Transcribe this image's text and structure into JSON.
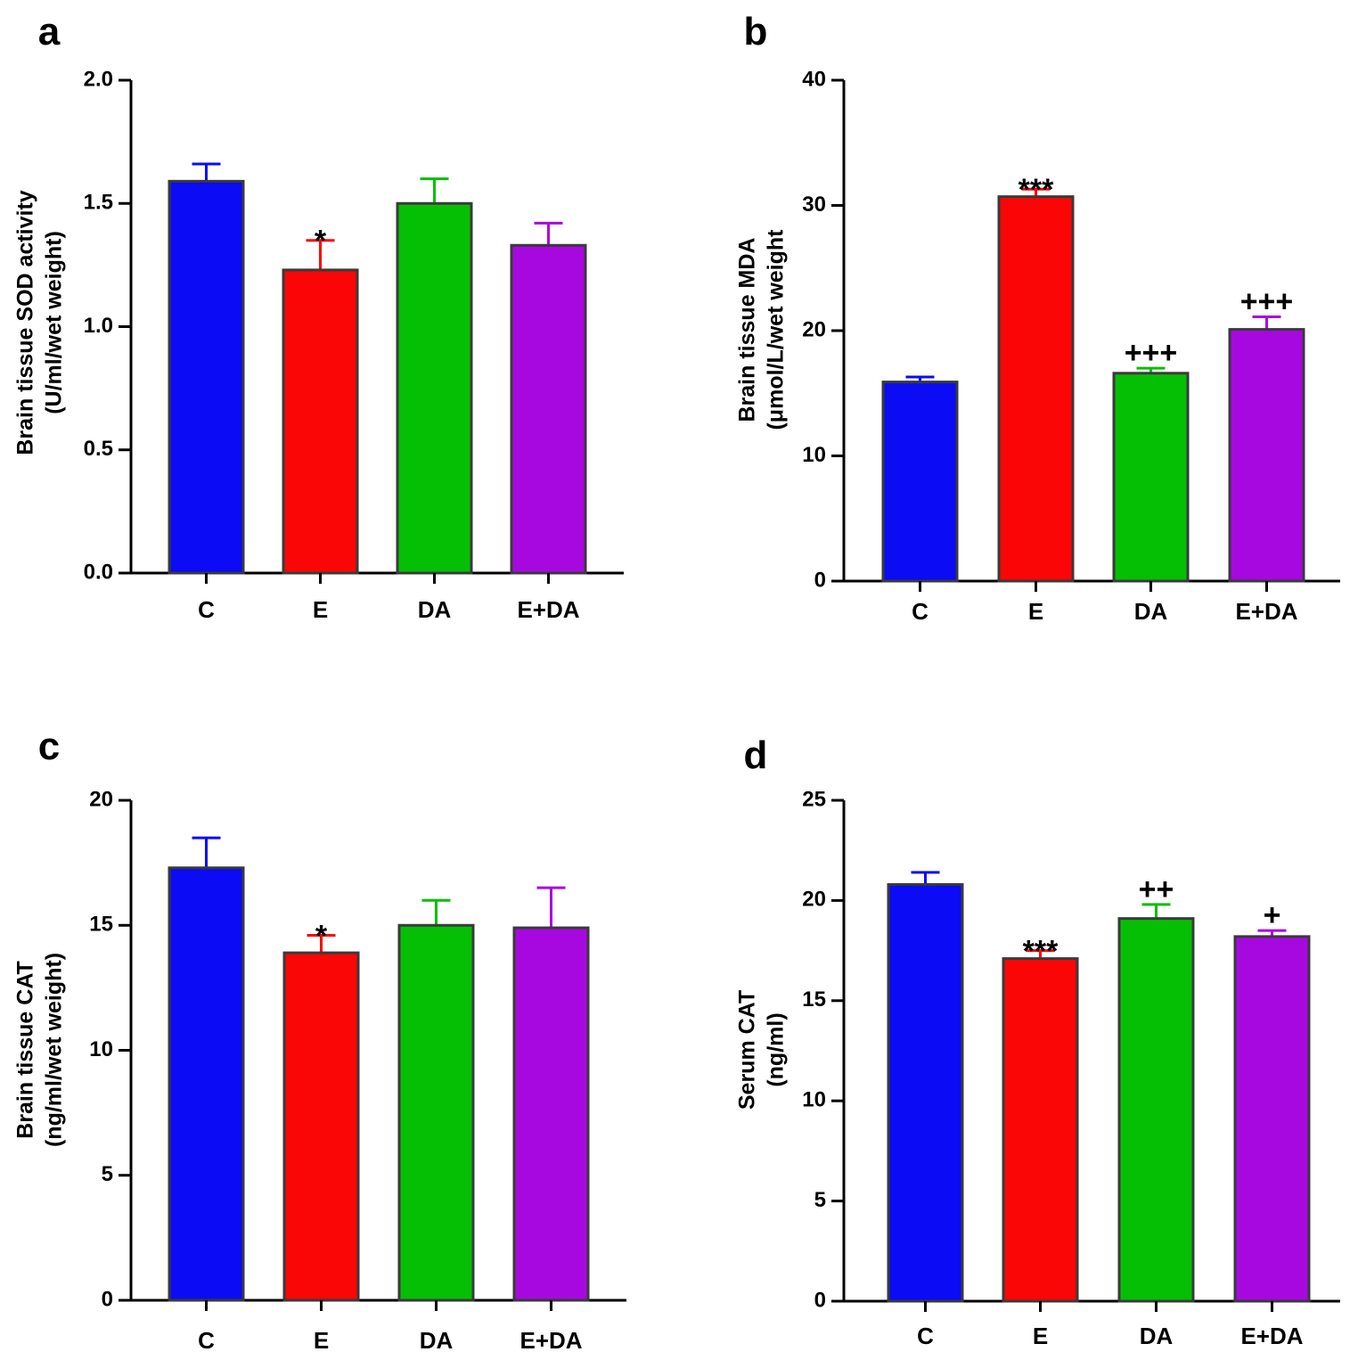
{
  "colors": {
    "C": "#0b0bf5",
    "E": "#fa0606",
    "DA": "#05bf05",
    "E+DA": "#a808e0",
    "bar_outline": "#3a3a3a",
    "axis": "#000000"
  },
  "chart_data": [
    {
      "panel": "a",
      "type": "bar",
      "categories": [
        "C",
        "E",
        "DA",
        "E+DA"
      ],
      "values": [
        1.59,
        1.23,
        1.5,
        1.33
      ],
      "errors": [
        0.07,
        0.12,
        0.1,
        0.09
      ],
      "significance": [
        "",
        "*",
        "",
        ""
      ],
      "ylabel_line1": "Brain tissue SOD activity",
      "ylabel_line2": "(U/ml/wet weight)",
      "ylim": [
        0,
        2.0
      ],
      "yticks": [
        "0.0",
        "0.5",
        "1.0",
        "1.5",
        "2.0"
      ],
      "tick_values": [
        0,
        0.5,
        1.0,
        1.5,
        2.0
      ]
    },
    {
      "panel": "b",
      "type": "bar",
      "categories": [
        "C",
        "E",
        "DA",
        "E+DA"
      ],
      "values": [
        15.9,
        30.7,
        16.6,
        20.1
      ],
      "errors": [
        0.4,
        0.6,
        0.4,
        1.0
      ],
      "significance": [
        "",
        "***",
        "+++",
        "+++"
      ],
      "ylabel_line1": "Brain tissue MDA",
      "ylabel_line2": "(μmol/L/wet weight",
      "ylim": [
        0,
        40
      ],
      "yticks": [
        "0",
        "10",
        "20",
        "30",
        "40"
      ],
      "tick_values": [
        0,
        10,
        20,
        30,
        40
      ]
    },
    {
      "panel": "c",
      "type": "bar",
      "categories": [
        "C",
        "E",
        "DA",
        "E+DA"
      ],
      "values": [
        17.3,
        13.9,
        15.0,
        14.9
      ],
      "errors": [
        1.2,
        0.7,
        1.0,
        1.6
      ],
      "significance": [
        "",
        "*",
        "",
        ""
      ],
      "ylabel_line1": "Brain tissue CAT",
      "ylabel_line2": "(ng/ml/wet weight)",
      "ylim": [
        0,
        20
      ],
      "yticks": [
        "0",
        "5",
        "10",
        "15",
        "20"
      ],
      "tick_values": [
        0,
        5,
        10,
        15,
        20
      ]
    },
    {
      "panel": "d",
      "type": "bar",
      "categories": [
        "C",
        "E",
        "DA",
        "E+DA"
      ],
      "values": [
        20.8,
        17.1,
        19.1,
        18.2
      ],
      "errors": [
        0.6,
        0.4,
        0.7,
        0.3
      ],
      "significance": [
        "",
        "***",
        "++",
        "+"
      ],
      "ylabel_line1": "Serum CAT",
      "ylabel_line2": "(ng/ml)",
      "ylim": [
        0,
        25
      ],
      "yticks": [
        "0",
        "5",
        "10",
        "15",
        "20",
        "25"
      ],
      "tick_values": [
        0,
        5,
        10,
        15,
        20,
        25
      ]
    }
  ]
}
